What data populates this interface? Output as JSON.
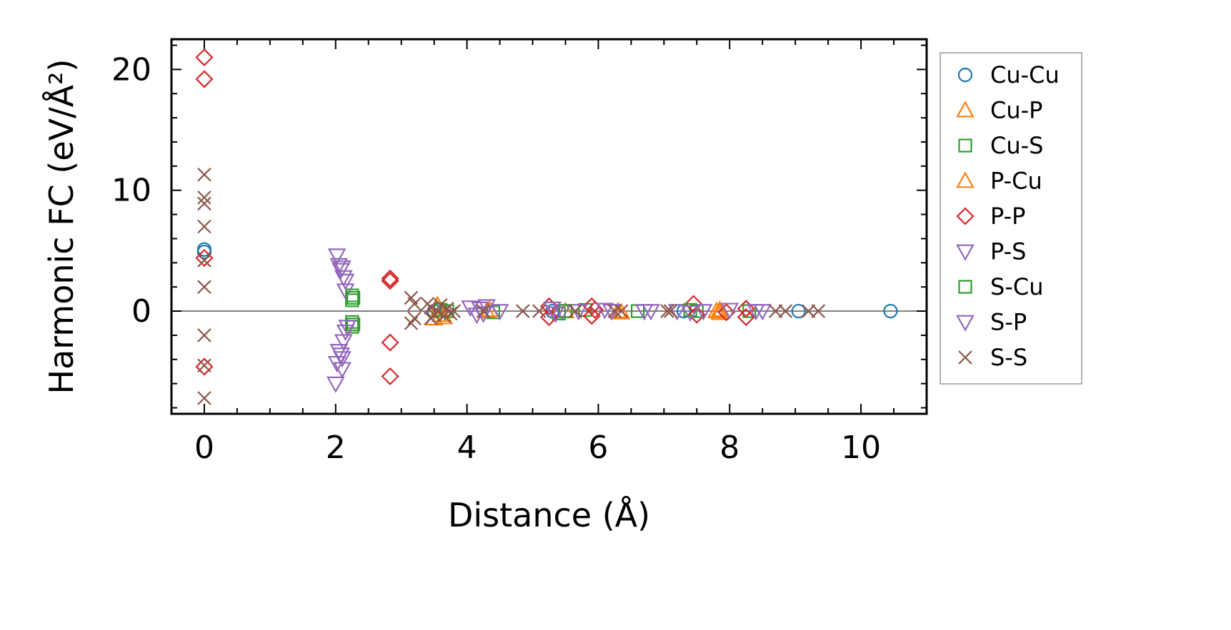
{
  "chart_data": {
    "type": "scatter",
    "xlabel": "Distance (Å)",
    "ylabel": "Harmonic FC (eV/Å²)",
    "xlim": [
      -0.5,
      11.0
    ],
    "ylim": [
      -8.5,
      22.5
    ],
    "x_ticks": [
      0,
      2,
      4,
      6,
      8,
      10
    ],
    "y_ticks": [
      0,
      10,
      20
    ],
    "reference_line_y": 0,
    "grid": false,
    "legend_position": "outside-right",
    "series": [
      {
        "name": "Cu-Cu",
        "marker": "circle",
        "color": "#1f77b4",
        "points": [
          [
            0,
            5.1
          ],
          [
            0,
            4.9
          ],
          [
            9.05,
            0.0
          ],
          [
            10.45,
            0.0
          ],
          [
            3.5,
            0.0
          ],
          [
            5.3,
            0.0
          ],
          [
            7.3,
            0.0
          ]
        ]
      },
      {
        "name": "Cu-P",
        "marker": "triangle-up",
        "color": "#ff7f0e",
        "points": [
          [
            3.5,
            -0.6
          ],
          [
            3.6,
            -0.3
          ],
          [
            4.3,
            0.0
          ],
          [
            5.5,
            0.0
          ],
          [
            6.3,
            0.0
          ],
          [
            7.8,
            0.0
          ],
          [
            7.85,
            0.1
          ]
        ]
      },
      {
        "name": "Cu-S",
        "marker": "square",
        "color": "#2ca02c",
        "points": [
          [
            2.25,
            1.3
          ],
          [
            2.25,
            0.9
          ],
          [
            2.25,
            -0.9
          ],
          [
            2.25,
            -1.3
          ],
          [
            3.6,
            0.1
          ],
          [
            4.4,
            -0.1
          ],
          [
            5.4,
            -0.2
          ],
          [
            5.8,
            0.1
          ],
          [
            6.6,
            0.0
          ],
          [
            7.5,
            0.0
          ],
          [
            8.3,
            0.0
          ]
        ]
      },
      {
        "name": "P-Cu",
        "marker": "triangle-up",
        "color": "#ff7f0e",
        "points": [
          [
            3.55,
            0.5
          ],
          [
            3.65,
            -0.5
          ],
          [
            4.35,
            0.1
          ],
          [
            6.35,
            -0.1
          ],
          [
            7.85,
            -0.15
          ]
        ]
      },
      {
        "name": "P-P",
        "marker": "diamond",
        "color": "#d62728",
        "points": [
          [
            0,
            21.0
          ],
          [
            0,
            19.2
          ],
          [
            0,
            4.4
          ],
          [
            0,
            -4.6
          ],
          [
            2.83,
            2.7
          ],
          [
            2.83,
            2.5
          ],
          [
            2.83,
            -2.6
          ],
          [
            2.83,
            -5.4
          ],
          [
            5.25,
            0.4
          ],
          [
            5.25,
            -0.5
          ],
          [
            5.9,
            0.4
          ],
          [
            5.9,
            -0.4
          ],
          [
            5.95,
            0.1
          ],
          [
            7.45,
            0.6
          ],
          [
            7.5,
            -0.3
          ],
          [
            7.95,
            -0.1
          ],
          [
            8.25,
            0.2
          ],
          [
            8.25,
            -0.5
          ]
        ]
      },
      {
        "name": "P-S",
        "marker": "triangle-down",
        "color": "#9467bd",
        "points": [
          [
            2.02,
            4.6
          ],
          [
            2.05,
            3.8
          ],
          [
            2.08,
            3.4
          ],
          [
            2.12,
            2.8
          ],
          [
            2.15,
            1.7
          ],
          [
            2.05,
            -3.3
          ],
          [
            2.08,
            -3.6
          ],
          [
            2.02,
            -4.3
          ],
          [
            2.0,
            -6.0
          ],
          [
            4.05,
            0.3
          ],
          [
            4.2,
            0.2
          ],
          [
            4.3,
            0.4
          ],
          [
            5.3,
            0.2
          ],
          [
            5.45,
            0.0
          ],
          [
            5.7,
            0.0
          ],
          [
            6.1,
            0.1
          ],
          [
            6.7,
            0.0
          ],
          [
            7.2,
            0.0
          ],
          [
            7.6,
            0.0
          ],
          [
            8.4,
            0.0
          ]
        ]
      },
      {
        "name": "S-Cu",
        "marker": "square",
        "color": "#2ca02c",
        "points": [
          [
            2.27,
            1.1
          ],
          [
            2.27,
            -1.1
          ],
          [
            3.7,
            0.0
          ],
          [
            5.5,
            0.0
          ],
          [
            7.4,
            0.1
          ]
        ]
      },
      {
        "name": "S-P",
        "marker": "triangle-down",
        "color": "#9467bd",
        "points": [
          [
            2.1,
            3.6
          ],
          [
            2.15,
            2.5
          ],
          [
            2.12,
            -2.5
          ],
          [
            2.15,
            -1.7
          ],
          [
            2.18,
            -1.3
          ],
          [
            2.1,
            -4.8
          ],
          [
            2.1,
            -3.9
          ],
          [
            4.15,
            -0.3
          ],
          [
            4.25,
            -0.2
          ],
          [
            4.5,
            0.0
          ],
          [
            5.35,
            -0.2
          ],
          [
            6.2,
            0.0
          ],
          [
            6.8,
            0.0
          ],
          [
            7.4,
            -0.1
          ],
          [
            8.0,
            0.1
          ],
          [
            8.5,
            0.0
          ]
        ]
      },
      {
        "name": "S-S",
        "marker": "x",
        "color": "#8c564b",
        "points": [
          [
            0,
            11.3
          ],
          [
            0,
            9.4
          ],
          [
            0,
            8.9
          ],
          [
            0,
            7.0
          ],
          [
            0,
            4.2
          ],
          [
            0,
            2.0
          ],
          [
            0,
            -2.0
          ],
          [
            0,
            -4.5
          ],
          [
            0,
            -7.2
          ],
          [
            3.15,
            1.1
          ],
          [
            3.2,
            0.6
          ],
          [
            3.15,
            -1.0
          ],
          [
            3.2,
            -0.6
          ],
          [
            3.4,
            0.6
          ],
          [
            3.45,
            0.3
          ],
          [
            3.5,
            -0.3
          ],
          [
            3.55,
            0.0
          ],
          [
            3.6,
            0.5
          ],
          [
            3.65,
            -0.4
          ],
          [
            3.7,
            0.2
          ],
          [
            3.75,
            -0.2
          ],
          [
            3.8,
            0.0
          ],
          [
            3.45,
            -0.6
          ],
          [
            4.25,
            0.0
          ],
          [
            4.85,
            0.0
          ],
          [
            5.1,
            0.0
          ],
          [
            5.65,
            0.0
          ],
          [
            6.25,
            0.0
          ],
          [
            6.35,
            0.0
          ],
          [
            7.05,
            0.0
          ],
          [
            7.1,
            0.0
          ],
          [
            8.7,
            0.0
          ],
          [
            8.85,
            0.0
          ],
          [
            9.2,
            0.0
          ],
          [
            9.35,
            0.0
          ]
        ]
      }
    ]
  }
}
